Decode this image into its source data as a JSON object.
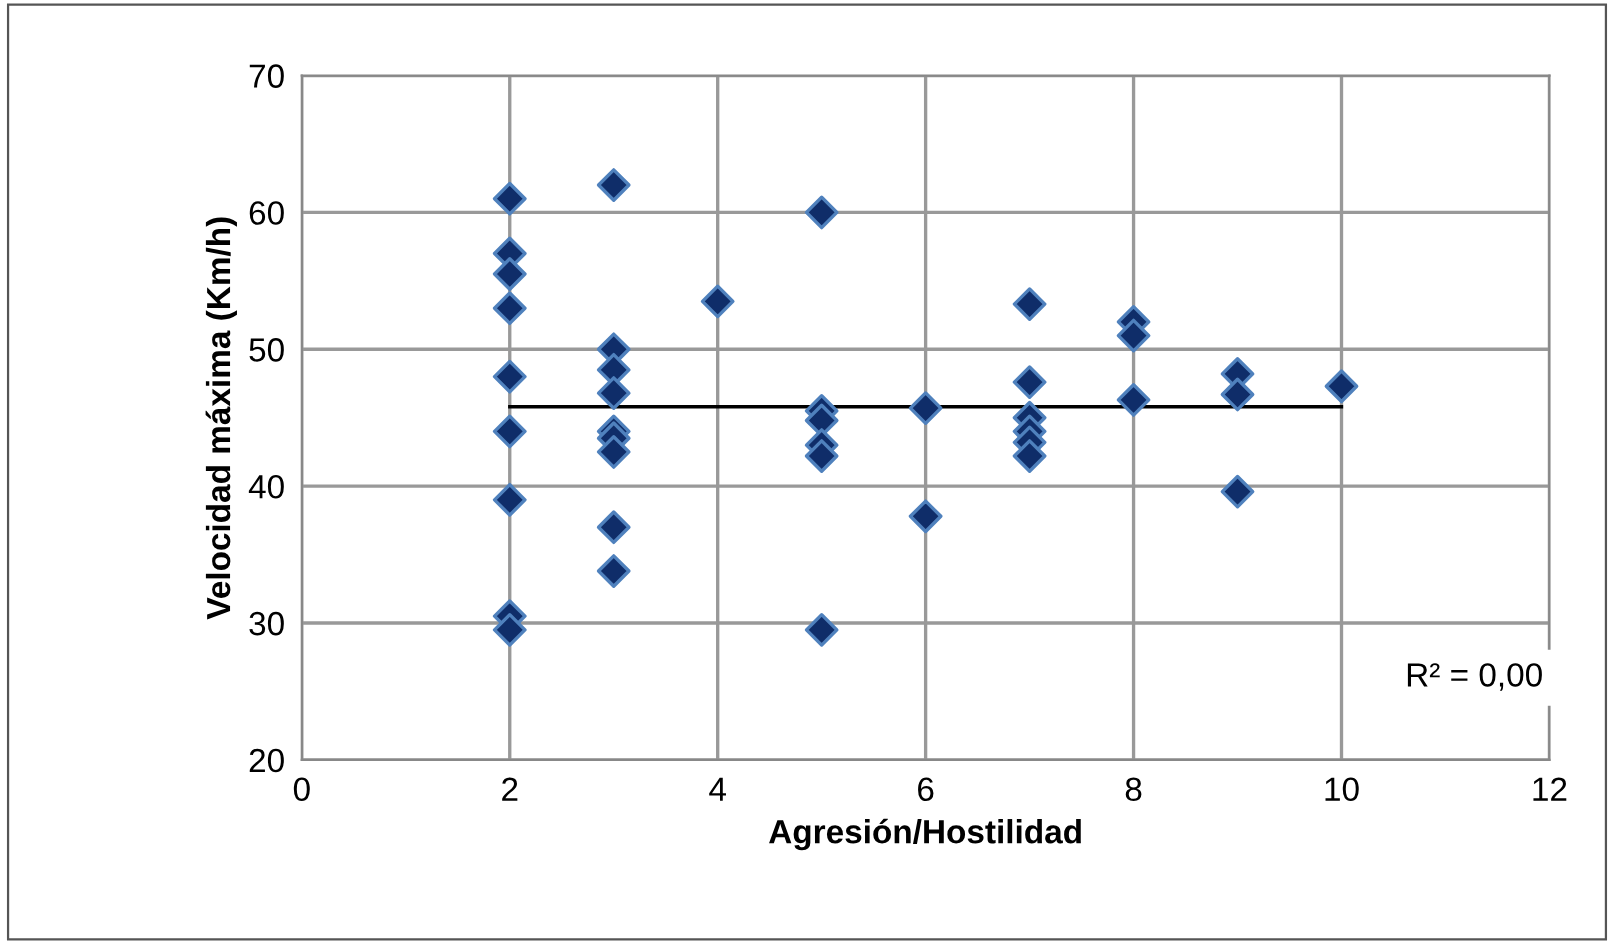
{
  "chart_data": {
    "type": "scatter",
    "xlabel": "Agresión/Hostilidad",
    "ylabel": "Velocidad máxima (Km/h)",
    "xlim": [
      0,
      12
    ],
    "xticks": [
      0,
      2,
      4,
      6,
      8,
      10,
      12
    ],
    "ylim": [
      20,
      70
    ],
    "yticks": [
      20,
      30,
      40,
      50,
      60,
      70
    ],
    "grid": true,
    "marker": "diamond",
    "series": [
      {
        "color": "#0f2d69",
        "x": [
          2,
          2,
          2,
          2,
          2,
          2,
          2,
          2,
          2,
          3,
          3,
          3,
          3,
          3,
          3,
          3,
          3,
          3,
          4,
          5,
          5,
          5,
          5,
          5,
          5,
          6,
          6,
          7,
          7,
          7,
          7,
          7,
          7,
          8,
          8,
          8,
          9,
          9,
          9,
          10
        ],
        "values": [
          61,
          57,
          55.5,
          53,
          48,
          44,
          39,
          30.5,
          29.5,
          62,
          50,
          48.5,
          46.8,
          44,
          43.5,
          42.5,
          37,
          33.8,
          53.5,
          60,
          45.5,
          44.8,
          43,
          42.2,
          29.5,
          45.7,
          37.8,
          53.3,
          47.6,
          45,
          44,
          43.2,
          42.2,
          52,
          51,
          46.3,
          48.2,
          46.7,
          39.6,
          47.3
        ]
      },
      {
        "type": "line",
        "color": "#000000",
        "marker": "none",
        "x": [
          2,
          10
        ],
        "values": [
          45.8,
          45.8
        ]
      }
    ],
    "annotations": [
      "R² = 0,00"
    ]
  }
}
